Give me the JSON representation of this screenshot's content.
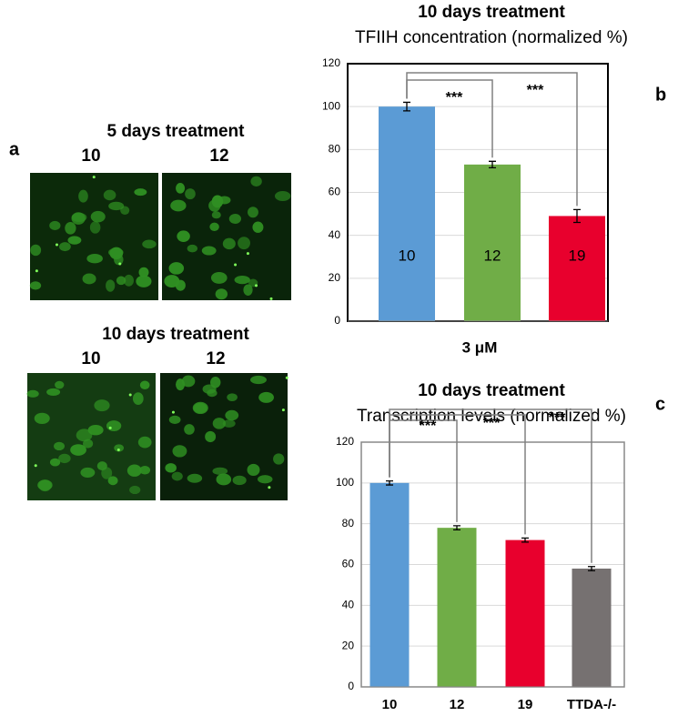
{
  "panel_a": {
    "label": "a",
    "groups": [
      {
        "title": "5 days treatment",
        "labels": [
          "10",
          "12"
        ]
      },
      {
        "title": "10 days treatment",
        "labels": [
          "10",
          "12"
        ]
      }
    ]
  },
  "chart_data": [
    {
      "type": "bar",
      "panel": "b",
      "title": "10 days treatment",
      "subtitle": "TFIIH concentration (normalized %)",
      "xlabel": "3 μM",
      "category_labels": "inside",
      "frame_color": "#000000",
      "categories": [
        "10",
        "12",
        "19"
      ],
      "values": [
        100,
        73,
        49
      ],
      "errors": [
        2,
        1.5,
        3
      ],
      "colors": [
        "#5b9bd5",
        "#70ad47",
        "#e8002d"
      ],
      "ylim": [
        0,
        120
      ],
      "yticks": [
        0,
        20,
        40,
        60,
        80,
        100,
        120
      ],
      "grid": true,
      "annotations": [
        "***",
        "***"
      ]
    },
    {
      "type": "bar",
      "panel": "c",
      "title": "10 days treatment",
      "subtitle": "Transcription levels (normalized %)",
      "category_labels": "below",
      "frame_color": "#888888",
      "categories": [
        "10",
        "12",
        "19",
        "TTDA-/-"
      ],
      "values": [
        100,
        78,
        72,
        58
      ],
      "errors": [
        1,
        1,
        1,
        1
      ],
      "colors": [
        "#5b9bd5",
        "#70ad47",
        "#e8002d",
        "#767171"
      ],
      "ylim": [
        0,
        120
      ],
      "yticks": [
        0,
        20,
        40,
        60,
        80,
        100,
        120
      ],
      "grid": true,
      "annotations": [
        "***",
        "***",
        "***"
      ]
    }
  ]
}
